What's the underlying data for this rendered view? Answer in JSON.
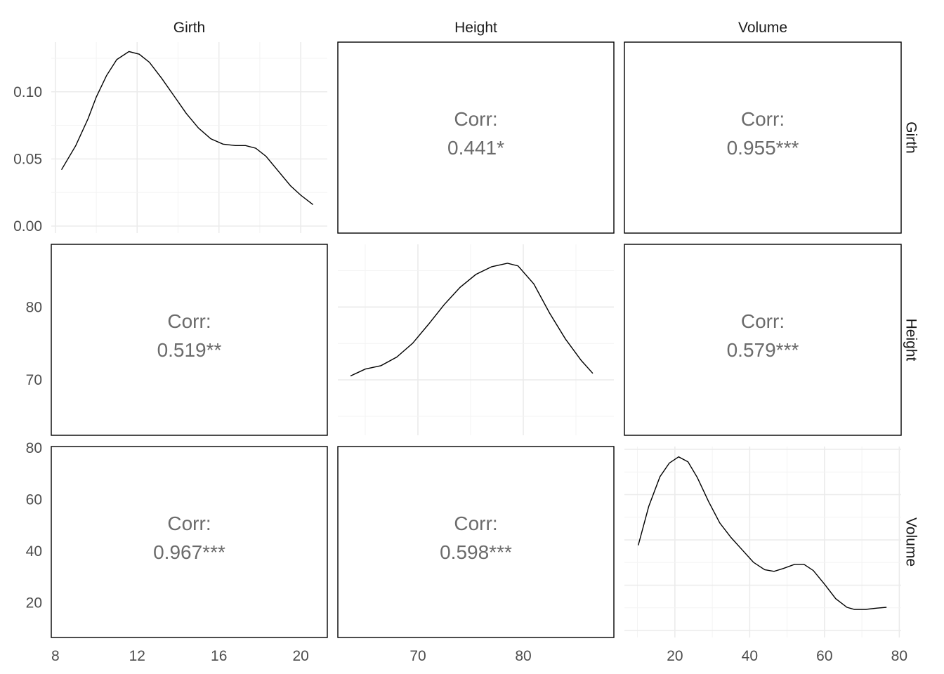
{
  "chart_data": {
    "type": "pairs",
    "variables": [
      "Girth",
      "Height",
      "Volume"
    ],
    "diagonal": [
      {
        "variable": "Girth",
        "type": "density",
        "x_ticks": [
          8,
          12,
          16,
          20
        ],
        "y_ticks": [
          "0.00",
          "0.05",
          "0.10"
        ],
        "xlim": [
          7.8,
          21.3
        ],
        "ylim": [
          0,
          0.137
        ],
        "points": [
          [
            8.3,
            0.042
          ],
          [
            9,
            0.06
          ],
          [
            9.6,
            0.08
          ],
          [
            10,
            0.096
          ],
          [
            10.5,
            0.112
          ],
          [
            11,
            0.124
          ],
          [
            11.6,
            0.13
          ],
          [
            12.1,
            0.128
          ],
          [
            12.6,
            0.122
          ],
          [
            13.2,
            0.11
          ],
          [
            13.8,
            0.097
          ],
          [
            14.4,
            0.084
          ],
          [
            15,
            0.073
          ],
          [
            15.6,
            0.065
          ],
          [
            16.2,
            0.061
          ],
          [
            16.8,
            0.06
          ],
          [
            17.3,
            0.06
          ],
          [
            17.8,
            0.058
          ],
          [
            18.3,
            0.052
          ],
          [
            18.9,
            0.041
          ],
          [
            19.5,
            0.03
          ],
          [
            20,
            0.023
          ],
          [
            20.6,
            0.016
          ]
        ]
      },
      {
        "variable": "Height",
        "type": "density",
        "x_ticks": [
          70,
          80
        ],
        "xlim": [
          62.4,
          88.6
        ],
        "points": [
          [
            63.6,
            0.0345
          ],
          [
            65,
            0.0385
          ],
          [
            66.5,
            0.0405
          ],
          [
            68,
            0.0455
          ],
          [
            69.5,
            0.0535
          ],
          [
            71,
            0.0645
          ],
          [
            72.5,
            0.076
          ],
          [
            74,
            0.086
          ],
          [
            75.5,
            0.0935
          ],
          [
            77,
            0.098
          ],
          [
            78.5,
            0.1
          ],
          [
            79.5,
            0.0985
          ],
          [
            81,
            0.088
          ],
          [
            82.5,
            0.071
          ],
          [
            84,
            0.056
          ],
          [
            85.5,
            0.0435
          ],
          [
            86.6,
            0.036
          ]
        ]
      },
      {
        "variable": "Volume",
        "type": "density",
        "x_ticks": [
          20,
          40,
          60,
          80
        ],
        "xlim": [
          6.5,
          80.5
        ],
        "ylim": [
          0,
          0.0445
        ],
        "points": [
          [
            10.2,
            0.0206
          ],
          [
            13,
            0.03
          ],
          [
            16,
            0.0372
          ],
          [
            18.5,
            0.0405
          ],
          [
            21,
            0.042
          ],
          [
            23.5,
            0.0408
          ],
          [
            26,
            0.037
          ],
          [
            29,
            0.0312
          ],
          [
            32,
            0.026
          ],
          [
            35,
            0.0225
          ],
          [
            38,
            0.0195
          ],
          [
            41,
            0.0165
          ],
          [
            44,
            0.0147
          ],
          [
            46.5,
            0.0143
          ],
          [
            49,
            0.015
          ],
          [
            52,
            0.016
          ],
          [
            54.5,
            0.016
          ],
          [
            57,
            0.0145
          ],
          [
            60,
            0.0112
          ],
          [
            63,
            0.0077
          ],
          [
            66,
            0.0056
          ],
          [
            68,
            0.0051
          ],
          [
            71,
            0.0051
          ],
          [
            74,
            0.0054
          ],
          [
            76.6,
            0.0056
          ]
        ]
      }
    ],
    "correlations": [
      {
        "row": "Girth",
        "col": "Height",
        "label": "Corr:",
        "value": "0.441*"
      },
      {
        "row": "Girth",
        "col": "Volume",
        "label": "Corr:",
        "value": "0.955***"
      },
      {
        "row": "Height",
        "col": "Girth",
        "label": "Corr:",
        "value": "0.519**"
      },
      {
        "row": "Height",
        "col": "Volume",
        "label": "Corr:",
        "value": "0.579***"
      },
      {
        "row": "Volume",
        "col": "Girth",
        "label": "Corr:",
        "value": "0.967***"
      },
      {
        "row": "Volume",
        "col": "Height",
        "label": "Corr:",
        "value": "0.598***"
      }
    ],
    "left_axis": [
      {
        "row": "Girth",
        "ticks": [
          "0.00",
          "0.05",
          "0.10"
        ]
      },
      {
        "row": "Height",
        "ticks": [
          "70",
          "80"
        ],
        "ylim": [
          62.4,
          88.6
        ]
      },
      {
        "row": "Volume",
        "ticks": [
          "20",
          "40",
          "60",
          "80"
        ],
        "ylim": [
          6.5,
          80.5
        ]
      }
    ],
    "bottom_axis": [
      {
        "col": "Girth",
        "ticks": [
          "8",
          "12",
          "16",
          "20"
        ]
      },
      {
        "col": "Height",
        "ticks": [
          "70",
          "80"
        ]
      },
      {
        "col": "Volume",
        "ticks": [
          "20",
          "40",
          "60",
          "80"
        ]
      }
    ],
    "grid": true
  }
}
